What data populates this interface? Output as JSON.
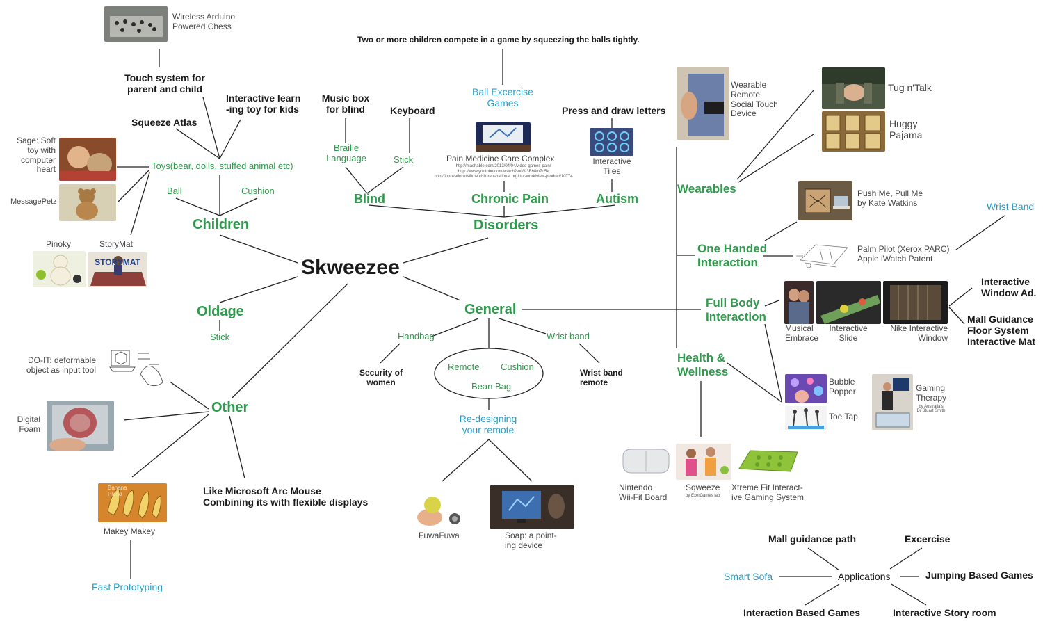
{
  "central": "Skweezee",
  "colors": {
    "green": "#2e9a4c",
    "teal": "#2a9bc2",
    "line": "#222222",
    "text": "#1a1a1a"
  },
  "children": {
    "title": "Children",
    "toys": "Toys(bear, dolls, stuffed animal etc)",
    "ball": "Ball",
    "cushion": "Cushion",
    "squeeze_atlas": "Squeeze Atlas",
    "touch_system": "Touch system for\nparent and child",
    "interactive_learn": "Interactive learn\n-ing toy for kids",
    "wireless_chess": "Wireless Arduino\nPowered Chess",
    "sage": "Sage: Soft\ntoy with\ncomputer\nheart",
    "messagepetz": "MessagePetz",
    "pinoky": "Pinoky",
    "storymat": "StoryMat",
    "storymat_logo": "STORYMAT"
  },
  "disorders": {
    "title": "Disorders",
    "blind": "Blind",
    "chronic_pain": "Chronic Pain",
    "autism": "Autism",
    "music_box": "Music box\nfor blind",
    "keyboard": "Keyboard",
    "braille": "Braille\nLanguage",
    "stick": "Stick",
    "ball_exercise": "Ball Excercise\nGames",
    "squeeze_game": "Two or more children compete in a game by squeezing the balls tightly.",
    "pain_medicine": "Pain Medicine Care Complex",
    "urls": "http://mashable.com/2013/04/04/video-games-pain/\nhttp://www.youtube.com/watch?v=W-3Bh8m7o5k\nhttp://innovationinstitute.childrensnational.org/our-work/view-product/10774",
    "press_draw": "Press and draw letters",
    "interactive_tiles": "Interactive\nTiles"
  },
  "oldage": {
    "title": "Oldage",
    "stick": "Stick"
  },
  "general": {
    "title": "General",
    "handbag": "Handbag",
    "wrist_band": "Wrist band",
    "security": "Security of\nwomen",
    "wrist_band_remote": "Wrist band\nremote",
    "remote": "Remote",
    "cushion": "Cushion",
    "bean_bag": "Bean Bag",
    "redesigning": "Re-designing\nyour remote",
    "fuwafuwa": "FuwaFuwa",
    "soap": "Soap: a point-\ning device"
  },
  "other": {
    "title": "Other",
    "do_it": "DO-IT: deformable\nobject as input tool",
    "digital_foam": "Digital\nFoam",
    "arc_mouse": "Like Microsoft Arc Mouse\nCombining its with flexible displays",
    "makey": "Makey Makey",
    "fast_prototyping": "Fast Prototyping"
  },
  "wearables": {
    "title": "Wearables",
    "wearable_remote": "Wearable\nRemote\nSocial Touch\nDevice",
    "tug_talk": "Tug n'Talk",
    "huggy": "Huggy\nPajama"
  },
  "one_handed": {
    "title": "One Handed\nInteraction",
    "push_me": "Push Me, Pull Me\nby Kate Watkins",
    "palm_pilot": "Palm Pilot (Xerox PARC)\nApple iWatch Patent",
    "wrist_band": "Wrist Band"
  },
  "full_body": {
    "title": "Full Body\nInteraction",
    "musical": "Musical\nEmbrace",
    "slide": "Interactive\nSlide",
    "nike": "Nike Interactive\nWindow",
    "window_ad": "Interactive\nWindow Ad.",
    "mall_floor": "Mall Guidance\nFloor System\nInteractive Mat"
  },
  "health": {
    "title": "Health &\nWellness",
    "bubble": "Bubble\nPopper",
    "toe_tap": "Toe Tap",
    "gaming_therapy": "Gaming\nTherapy",
    "gaming_credit": "by Australia's\nDr Stuart Smith",
    "nintendo": "Nintendo\nWii-Fit Board",
    "sqweeze": "Sqweeze",
    "sqweeze_credit": "by ExerGames lab",
    "xtreme": "Xtreme Fit Interact-\nive Gaming System"
  },
  "applications": {
    "title": "Applications",
    "mall_path": "Mall guidance path",
    "exercise": "Excercise",
    "smart_sofa": "Smart Sofa",
    "jumping": "Jumping Based Games",
    "interaction_games": "Interaction Based Games",
    "story_room": "Interactive Story room"
  }
}
